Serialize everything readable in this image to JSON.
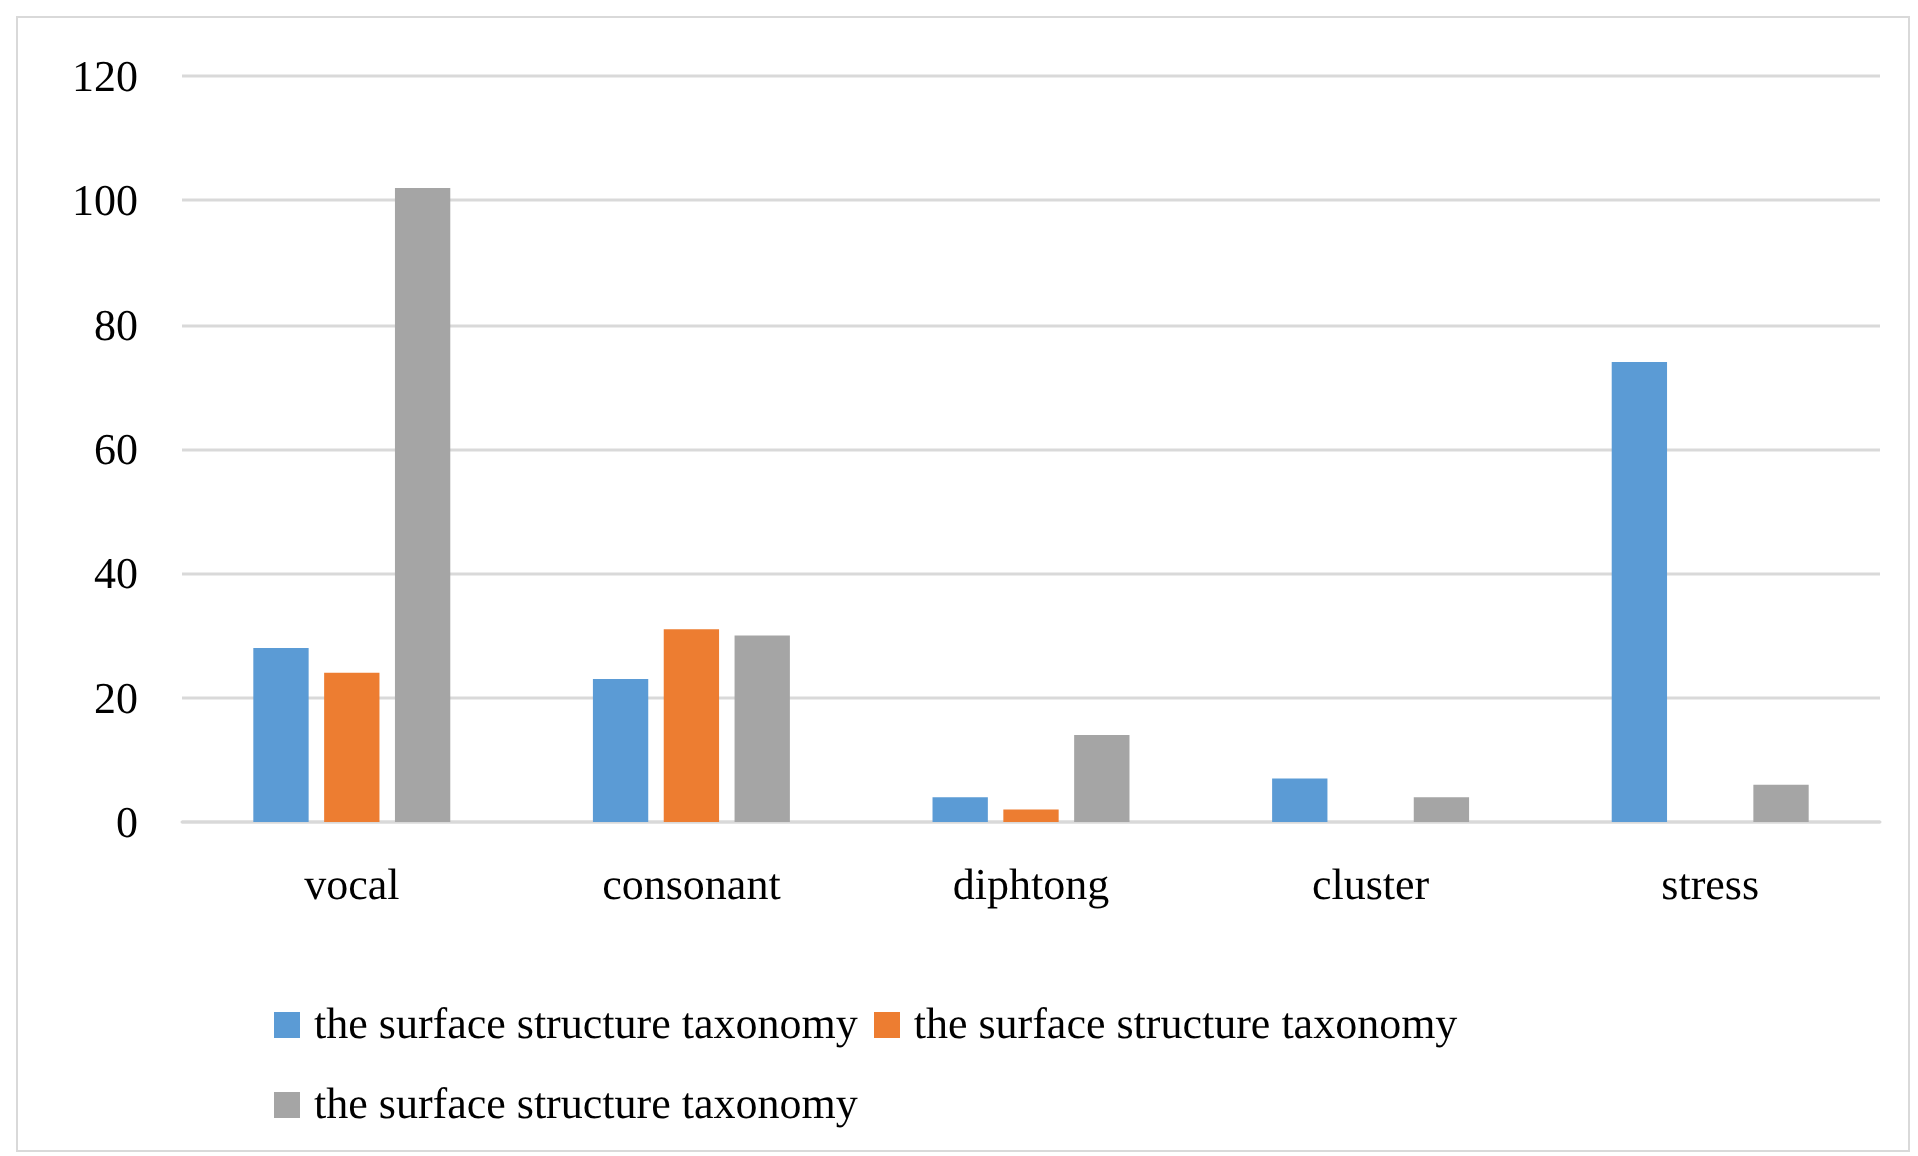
{
  "chart_data": {
    "type": "bar",
    "categories": [
      "vocal",
      "consonant",
      "diphtong",
      "cluster",
      "stress"
    ],
    "series": [
      {
        "name": "the surface structure taxonomy",
        "color": "#5b9bd5",
        "values": [
          28,
          23,
          4,
          7,
          74
        ]
      },
      {
        "name": "the surface structure taxonomy",
        "color": "#ed7d31",
        "values": [
          24,
          31,
          2,
          0,
          0
        ]
      },
      {
        "name": "the surface structure taxonomy",
        "color": "#a5a5a5",
        "values": [
          102,
          30,
          14,
          4,
          6
        ]
      }
    ],
    "ylim": [
      0,
      120
    ],
    "yticks": [
      0,
      20,
      40,
      60,
      80,
      100,
      120
    ],
    "grid": "y",
    "legend": "bottom"
  }
}
